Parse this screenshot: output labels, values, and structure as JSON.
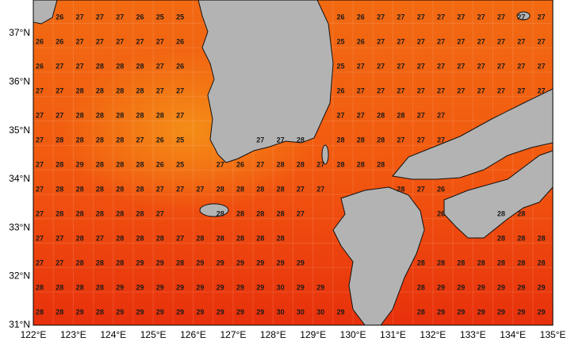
{
  "lat_labels": [
    "37°N",
    "36°N",
    "35°N",
    "34°N",
    "33°N",
    "32°N",
    "31°N"
  ],
  "lon_labels": [
    "122°E",
    "123°E",
    "124°E",
    "125°E",
    "126°E",
    "127°E",
    "128°E",
    "129°E",
    "130°E",
    "131°E",
    "132°E",
    "133°E",
    "134°E",
    "135°E"
  ],
  "grid": {
    "rows": [
      [
        null,
        26,
        27,
        27,
        27,
        26,
        25,
        25,
        null,
        null,
        null,
        null,
        null,
        null,
        null,
        26,
        26,
        27,
        27,
        27,
        27,
        27,
        27,
        27,
        27,
        27
      ],
      [
        26,
        26,
        27,
        27,
        27,
        27,
        27,
        26,
        null,
        null,
        null,
        null,
        null,
        null,
        null,
        25,
        26,
        27,
        27,
        27,
        27,
        27,
        27,
        27,
        27,
        27
      ],
      [
        26,
        27,
        27,
        28,
        28,
        28,
        27,
        26,
        null,
        null,
        null,
        null,
        null,
        null,
        null,
        25,
        27,
        27,
        27,
        27,
        27,
        27,
        27,
        27,
        27,
        27
      ],
      [
        27,
        27,
        28,
        28,
        28,
        28,
        27,
        27,
        null,
        null,
        null,
        null,
        null,
        null,
        null,
        26,
        27,
        27,
        27,
        27,
        27,
        27,
        27,
        27,
        27,
        27
      ],
      [
        27,
        27,
        28,
        28,
        28,
        28,
        28,
        27,
        null,
        null,
        null,
        null,
        null,
        null,
        null,
        27,
        27,
        28,
        28,
        27,
        27,
        null,
        null,
        null,
        null,
        null
      ],
      [
        27,
        28,
        28,
        28,
        28,
        27,
        26,
        25,
        null,
        null,
        null,
        27,
        27,
        28,
        null,
        28,
        28,
        28,
        27,
        27,
        27,
        null,
        null,
        null,
        null,
        null
      ],
      [
        27,
        28,
        29,
        28,
        28,
        28,
        26,
        25,
        null,
        27,
        26,
        27,
        28,
        28,
        27,
        28,
        28,
        28,
        null,
        null,
        null,
        null,
        null,
        null,
        null,
        null
      ],
      [
        27,
        28,
        28,
        28,
        28,
        28,
        27,
        27,
        27,
        28,
        28,
        28,
        28,
        27,
        27,
        null,
        null,
        null,
        28,
        27,
        26,
        null,
        null,
        null,
        null,
        null
      ],
      [
        27,
        28,
        28,
        28,
        28,
        28,
        27,
        null,
        null,
        28,
        28,
        28,
        28,
        27,
        null,
        null,
        null,
        null,
        null,
        null,
        26,
        null,
        null,
        28,
        28,
        null
      ],
      [
        27,
        27,
        28,
        27,
        28,
        28,
        28,
        27,
        28,
        28,
        28,
        28,
        28,
        null,
        null,
        null,
        null,
        null,
        null,
        null,
        null,
        null,
        null,
        28,
        28,
        28
      ],
      [
        27,
        27,
        28,
        28,
        28,
        29,
        29,
        28,
        29,
        29,
        29,
        29,
        29,
        29,
        null,
        null,
        null,
        null,
        null,
        28,
        28,
        28,
        28,
        28,
        28,
        28
      ],
      [
        28,
        28,
        28,
        28,
        29,
        29,
        29,
        29,
        29,
        29,
        29,
        29,
        30,
        29,
        29,
        null,
        null,
        null,
        null,
        28,
        29,
        29,
        29,
        29,
        29,
        29
      ],
      [
        28,
        28,
        29,
        28,
        29,
        29,
        29,
        29,
        29,
        29,
        29,
        29,
        30,
        30,
        30,
        29,
        null,
        null,
        null,
        28,
        29,
        29,
        29,
        29,
        29,
        29
      ]
    ]
  }
}
